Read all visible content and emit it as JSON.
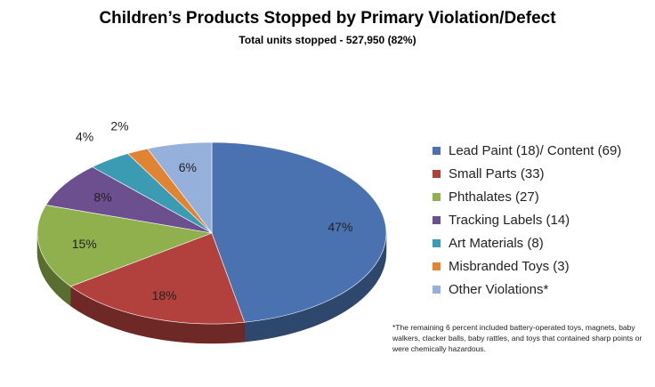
{
  "chart_data": {
    "type": "pie",
    "title": "Children’s Products Stopped by Primary Violation/Defect",
    "subtitle": "Total units stopped - 527,950 (82%)",
    "slices": [
      {
        "label": "Lead Paint (18)/ Content (69)",
        "value": 47,
        "pct_label": "47%",
        "color": "#4a72b0"
      },
      {
        "label": "Small Parts (33)",
        "value": 18,
        "pct_label": "18%",
        "color": "#b2413e"
      },
      {
        "label": "Phthalates (27)",
        "value": 15,
        "pct_label": "15%",
        "color": "#8fb04c"
      },
      {
        "label": "Tracking Labels (14)",
        "value": 8,
        "pct_label": "8%",
        "color": "#6c4f8f"
      },
      {
        "label": "Art Materials (8)",
        "value": 4,
        "pct_label": "4%",
        "color": "#3b9bb2"
      },
      {
        "label": "Misbranded Toys (3)",
        "value": 2,
        "pct_label": "2%",
        "color": "#e08434"
      },
      {
        "label": "Other Violations*",
        "value": 6,
        "pct_label": "6%",
        "color": "#95b0da"
      }
    ],
    "legend_position": "right",
    "footnote": "*The remaining 6 percent included battery-operated toys, magnets, baby walkers, clacker balls, baby rattles, and toys that contained sharp points or were chemically hazardous."
  }
}
